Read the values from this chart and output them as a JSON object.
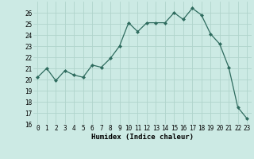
{
  "x": [
    0,
    1,
    2,
    3,
    4,
    5,
    6,
    7,
    8,
    9,
    10,
    11,
    12,
    13,
    14,
    15,
    16,
    17,
    18,
    19,
    20,
    21,
    22,
    23
  ],
  "y": [
    20.2,
    21.0,
    19.9,
    20.8,
    20.4,
    20.2,
    21.3,
    21.1,
    21.9,
    23.0,
    25.1,
    24.3,
    25.1,
    25.1,
    25.1,
    26.0,
    25.4,
    26.4,
    25.8,
    24.1,
    23.2,
    21.1,
    17.5,
    16.5
  ],
  "xlabel": "Humidex (Indice chaleur)",
  "ylim": [
    16,
    27
  ],
  "xlim": [
    -0.5,
    23.5
  ],
  "yticks": [
    16,
    17,
    18,
    19,
    20,
    21,
    22,
    23,
    24,
    25,
    26
  ],
  "xticks": [
    0,
    1,
    2,
    3,
    4,
    5,
    6,
    7,
    8,
    9,
    10,
    11,
    12,
    13,
    14,
    15,
    16,
    17,
    18,
    19,
    20,
    21,
    22,
    23
  ],
  "line_color": "#2e6b5e",
  "marker_color": "#2e6b5e",
  "bg_color": "#cceae4",
  "grid_color": "#b0d4cc",
  "xlabel_fontsize": 6.5,
  "tick_fontsize": 5.5
}
